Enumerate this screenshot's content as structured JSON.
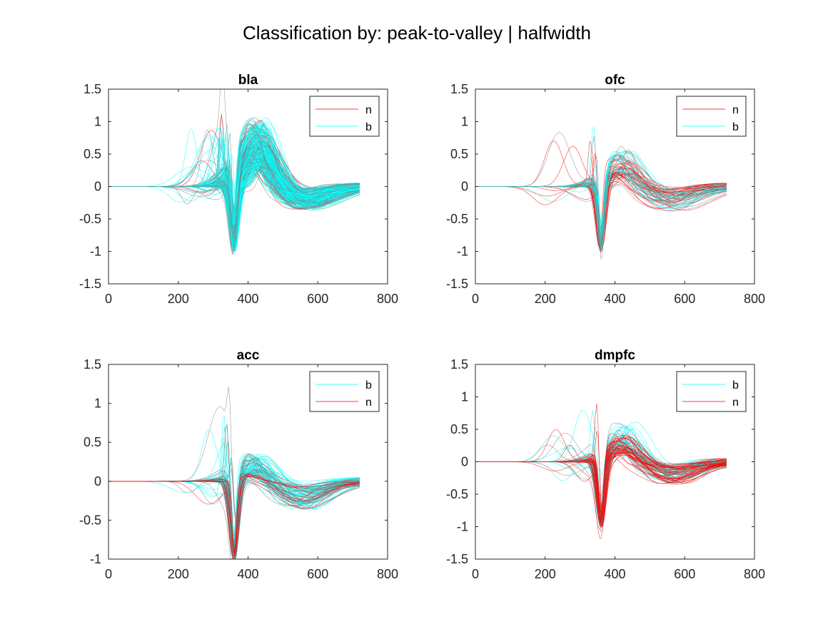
{
  "figure": {
    "title": "Classification by: peak-to-valley | halfwidth"
  },
  "colors": {
    "n": "#ff0000",
    "b": "#00ffff",
    "gray": "#7f7f7f",
    "axes": "#262626",
    "background": "#ffffff"
  },
  "chart_data": [
    {
      "type": "line",
      "title": "bla",
      "xlim": [
        0,
        800
      ],
      "ylim": [
        -1.5,
        1.5
      ],
      "xticks": [
        "0",
        "200",
        "400",
        "600",
        "800"
      ],
      "yticks": [
        "1.5",
        "1",
        "0.5",
        "0",
        "-0.5",
        "-1",
        "-1.5"
      ],
      "grid": false,
      "legend": {
        "position": "top-right",
        "entries": [
          "n",
          "b"
        ]
      },
      "x": [
        0,
        720
      ],
      "series": [
        {
          "name": "n",
          "waveform_count": 30,
          "trough_x": 360,
          "trough_y": -1,
          "peak_x": 420,
          "peak_y": 0.75
        },
        {
          "name": "b",
          "waveform_count": 220,
          "trough_x": 360,
          "trough_y": -1,
          "peak_x": 430,
          "peak_y": 0.85
        }
      ]
    },
    {
      "type": "line",
      "title": "ofc",
      "xlim": [
        0,
        800
      ],
      "ylim": [
        -1.5,
        1.5
      ],
      "xticks": [
        "0",
        "200",
        "400",
        "600",
        "800"
      ],
      "yticks": [
        "1.5",
        "1",
        "0.5",
        "0",
        "-0.5",
        "-1",
        "-1.5"
      ],
      "grid": false,
      "legend": {
        "position": "top-right",
        "entries": [
          "n",
          "b"
        ]
      },
      "x": [
        0,
        720
      ],
      "series": [
        {
          "name": "n",
          "waveform_count": 45,
          "trough_x": 360,
          "trough_y": -1,
          "peak_x": 420,
          "peak_y": 0.4
        },
        {
          "name": "b",
          "waveform_count": 25,
          "trough_x": 360,
          "trough_y": -1,
          "peak_x": 425,
          "peak_y": 0.5
        }
      ]
    },
    {
      "type": "line",
      "title": "acc",
      "xlim": [
        0,
        800
      ],
      "ylim": [
        -1,
        1.5
      ],
      "xticks": [
        "0",
        "200",
        "400",
        "600",
        "800"
      ],
      "yticks": [
        "1.5",
        "1",
        "0.5",
        "0",
        "-0.5",
        "-1"
      ],
      "grid": false,
      "legend": {
        "position": "top-right",
        "entries": [
          "b",
          "n"
        ]
      },
      "x": [
        0,
        720
      ],
      "series": [
        {
          "name": "b",
          "waveform_count": 80,
          "trough_x": 360,
          "trough_y": -1,
          "peak_x": 420,
          "peak_y": 0.3
        },
        {
          "name": "n",
          "waveform_count": 15,
          "trough_x": 360,
          "trough_y": -1,
          "peak_x": 400,
          "peak_y": 0.1
        }
      ]
    },
    {
      "type": "line",
      "title": "dmpfc",
      "xlim": [
        0,
        800
      ],
      "ylim": [
        -1.5,
        1.5
      ],
      "xticks": [
        "0",
        "200",
        "400",
        "600",
        "800"
      ],
      "yticks": [
        "1.5",
        "1",
        "0.5",
        "0",
        "-0.5",
        "-1",
        "-1.5"
      ],
      "grid": false,
      "legend": {
        "position": "top-right",
        "entries": [
          "b",
          "n"
        ]
      },
      "x": [
        0,
        720
      ],
      "series": [
        {
          "name": "b",
          "waveform_count": 50,
          "trough_x": 360,
          "trough_y": -1,
          "peak_x": 430,
          "peak_y": 0.5
        },
        {
          "name": "n",
          "waveform_count": 45,
          "trough_x": 360,
          "trough_y": -1,
          "peak_x": 420,
          "peak_y": 0.35
        }
      ]
    }
  ]
}
